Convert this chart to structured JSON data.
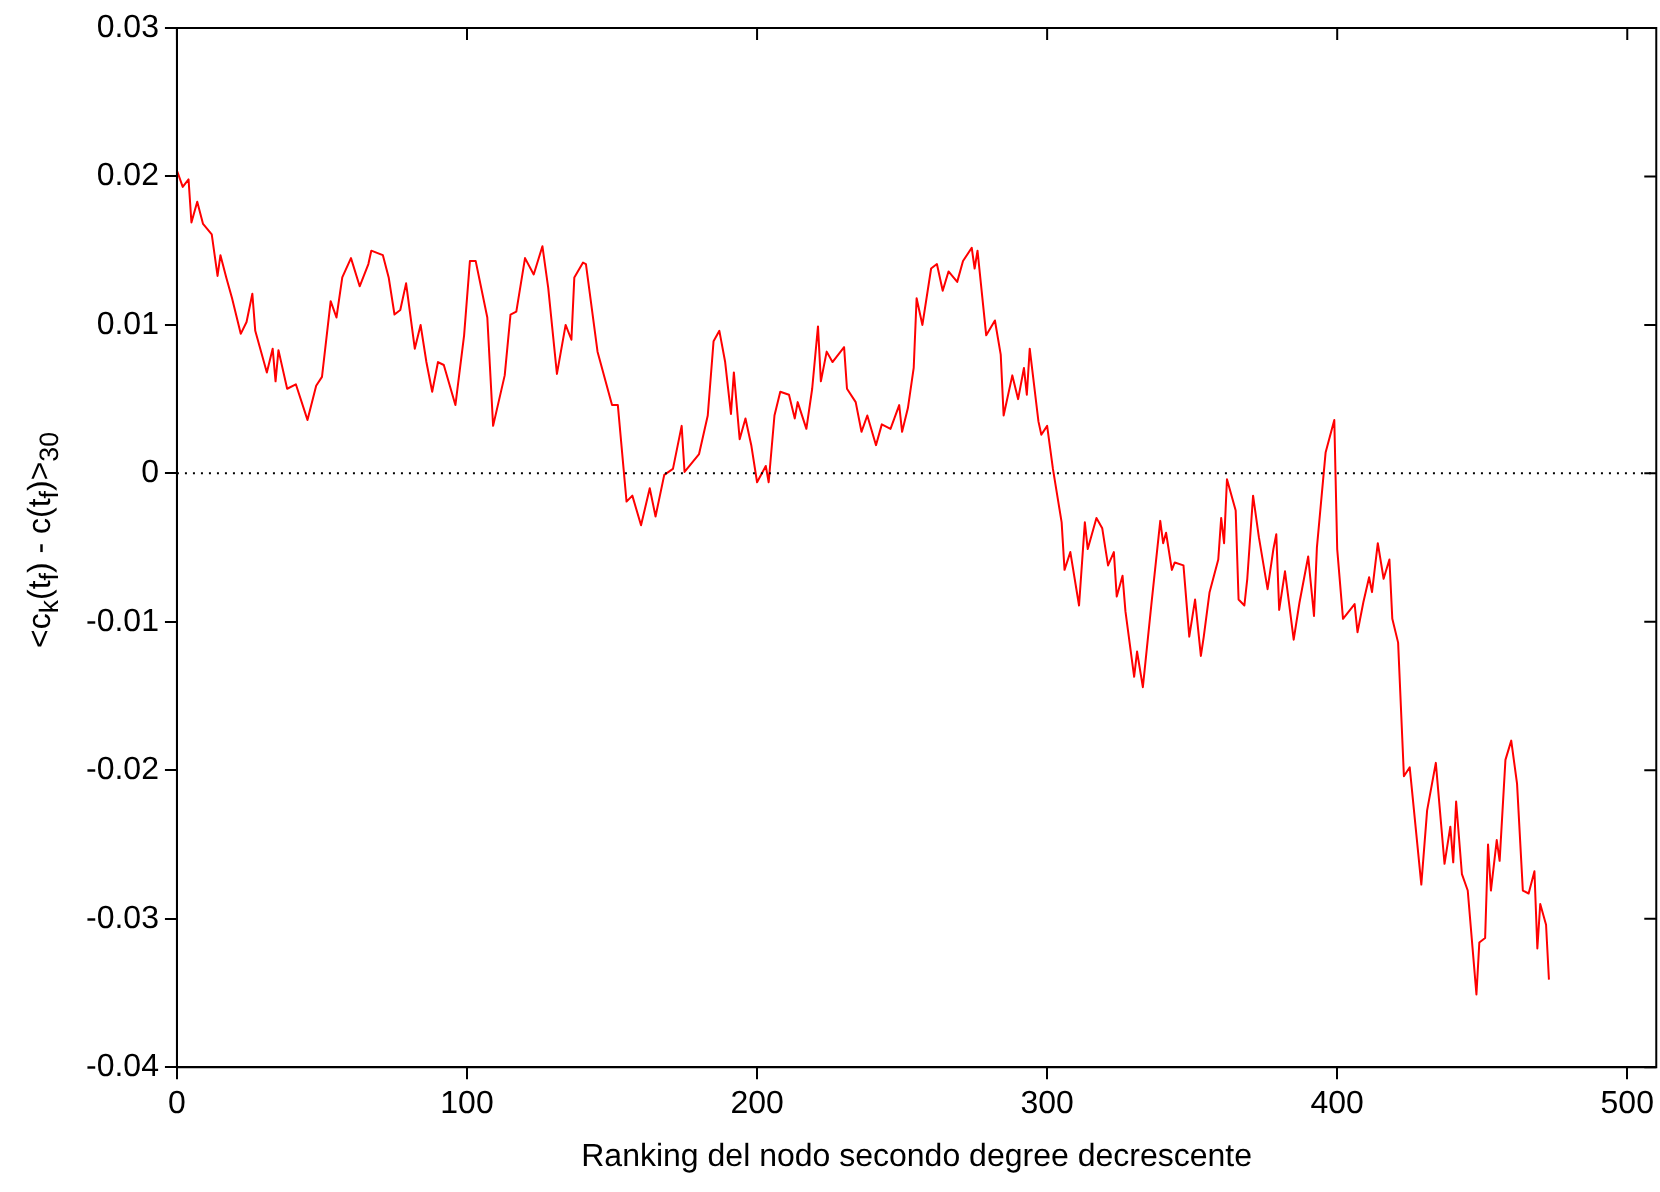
{
  "chart_data": {
    "type": "line",
    "xlabel": "Ranking del nodo secondo degree decrescente",
    "ylabel": "<c$_{k}$(t$_{f}$) - c(t$_{f}$)>$_{30}$",
    "xlim": [
      0,
      510
    ],
    "xticks": [
      0,
      100,
      200,
      300,
      400,
      500
    ],
    "ylim": [
      -0.04,
      0.03
    ],
    "yticks": [
      -0.04,
      -0.03,
      -0.02,
      -0.01,
      0,
      0.01,
      0.02,
      0.03
    ],
    "grid": false,
    "legend": false,
    "marker": "none",
    "line_style": "solid",
    "ref_lines": [
      {
        "axis": "y",
        "value": 0,
        "color": "#000000",
        "line_style": "dotted"
      }
    ],
    "series": [
      {
        "color": "#ff0000",
        "x": [
          0,
          2,
          4,
          5,
          7,
          9,
          12,
          14,
          15,
          17,
          19,
          22,
          24,
          26,
          27,
          31,
          33,
          34,
          35,
          38,
          41,
          45,
          48,
          50,
          53,
          55,
          57,
          60,
          63,
          66,
          67,
          71,
          73,
          75,
          77,
          79,
          82,
          84,
          86,
          88,
          90,
          92,
          96,
          99,
          101,
          103,
          107,
          109,
          113,
          115,
          117,
          120,
          123,
          126,
          128,
          131,
          134,
          136,
          137,
          140,
          141,
          145,
          150,
          152,
          155,
          157,
          160,
          163,
          165,
          168,
          171,
          174,
          175,
          180,
          183,
          185,
          187,
          189,
          191,
          192,
          194,
          196,
          198,
          200,
          203,
          204,
          206,
          208,
          211,
          213,
          214,
          217,
          219,
          221,
          222,
          224,
          226,
          230,
          231,
          234,
          236,
          238,
          241,
          243,
          246,
          249,
          250,
          252,
          254,
          255,
          257,
          260,
          262,
          264,
          266,
          269,
          271,
          274,
          275,
          276,
          279,
          282,
          284,
          285,
          288,
          290,
          292,
          293,
          294,
          297,
          298,
          300,
          302,
          305,
          306,
          308,
          311,
          313,
          314,
          317,
          319,
          321,
          323,
          324,
          326,
          327,
          330,
          331,
          333,
          336,
          339,
          340,
          341,
          343,
          344,
          347,
          349,
          351,
          353,
          354,
          356,
          359,
          360,
          361,
          362,
          365,
          366,
          368,
          369,
          371,
          373,
          376,
          378,
          379,
          380,
          382,
          385,
          387,
          390,
          392,
          393,
          396,
          399,
          400,
          402,
          406,
          407,
          409,
          411,
          412,
          414,
          416,
          418,
          419,
          421,
          423,
          425,
          429,
          431,
          434,
          437,
          439,
          440,
          441,
          443,
          445,
          448,
          449,
          451,
          452,
          453,
          455,
          456,
          458,
          460,
          462,
          464,
          466,
          468,
          469,
          470,
          472,
          473
        ],
        "values": [
          0.0204,
          0.0193,
          0.0198,
          0.0169,
          0.0183,
          0.0168,
          0.0161,
          0.0133,
          0.0147,
          0.0132,
          0.0118,
          0.0094,
          0.0102,
          0.0121,
          0.0096,
          0.0068,
          0.0084,
          0.0062,
          0.0083,
          0.0057,
          0.006,
          0.0036,
          0.0059,
          0.0065,
          0.0116,
          0.0105,
          0.0132,
          0.0145,
          0.0126,
          0.0141,
          0.015,
          0.0147,
          0.0132,
          0.0107,
          0.011,
          0.0128,
          0.0084,
          0.01,
          0.0075,
          0.0055,
          0.0075,
          0.0073,
          0.0046,
          0.0093,
          0.0143,
          0.0143,
          0.0105,
          0.0032,
          0.0066,
          0.0107,
          0.0109,
          0.0145,
          0.0134,
          0.0153,
          0.0125,
          0.0067,
          0.01,
          0.009,
          0.0132,
          0.0142,
          0.0141,
          0.0082,
          0.0046,
          0.0046,
          -0.0019,
          -0.0015,
          -0.0035,
          -0.001,
          -0.0029,
          -0.0001,
          0.0003,
          0.0032,
          0.0001,
          0.0013,
          0.0039,
          0.0089,
          0.0096,
          0.0075,
          0.004,
          0.0068,
          0.0023,
          0.0037,
          0.0019,
          -0.0006,
          0.0005,
          -0.0006,
          0.0039,
          0.0055,
          0.0053,
          0.0037,
          0.0048,
          0.003,
          0.0057,
          0.0099,
          0.0062,
          0.0082,
          0.0075,
          0.0085,
          0.0057,
          0.0048,
          0.0028,
          0.0039,
          0.0019,
          0.0033,
          0.003,
          0.0046,
          0.0028,
          0.0044,
          0.0071,
          0.0118,
          0.01,
          0.0138,
          0.0141,
          0.0123,
          0.0136,
          0.0129,
          0.0143,
          0.0152,
          0.0138,
          0.015,
          0.0093,
          0.0103,
          0.008,
          0.0039,
          0.0066,
          0.005,
          0.0071,
          0.0053,
          0.0084,
          0.0035,
          0.0026,
          0.0032,
          0.0003,
          -0.0033,
          -0.0065,
          -0.0053,
          -0.0089,
          -0.0033,
          -0.0051,
          -0.003,
          -0.0037,
          -0.0062,
          -0.0053,
          -0.0083,
          -0.0069,
          -0.0093,
          -0.0137,
          -0.012,
          -0.0144,
          -0.0087,
          -0.0032,
          -0.0047,
          -0.004,
          -0.0065,
          -0.006,
          -0.0062,
          -0.011,
          -0.0085,
          -0.0123,
          -0.011,
          -0.008,
          -0.0058,
          -0.003,
          -0.0047,
          -0.0004,
          -0.0025,
          -0.0085,
          -0.0089,
          -0.0071,
          -0.0015,
          -0.0043,
          -0.0078,
          -0.0051,
          -0.0041,
          -0.0092,
          -0.0066,
          -0.0112,
          -0.0087,
          -0.0056,
          -0.0096,
          -0.005,
          0.0014,
          0.0036,
          -0.0051,
          -0.0098,
          -0.0088,
          -0.0107,
          -0.0087,
          -0.007,
          -0.008,
          -0.0047,
          -0.0071,
          -0.0058,
          -0.0098,
          -0.0114,
          -0.0204,
          -0.0198,
          -0.0277,
          -0.0227,
          -0.0195,
          -0.0263,
          -0.0238,
          -0.0262,
          -0.0221,
          -0.027,
          -0.0281,
          -0.0351,
          -0.0316,
          -0.0313,
          -0.025,
          -0.0281,
          -0.0247,
          -0.0261,
          -0.0193,
          -0.018,
          -0.0209,
          -0.0281,
          -0.0283,
          -0.0268,
          -0.032,
          -0.029,
          -0.0304,
          -0.0341
        ]
      }
    ]
  }
}
